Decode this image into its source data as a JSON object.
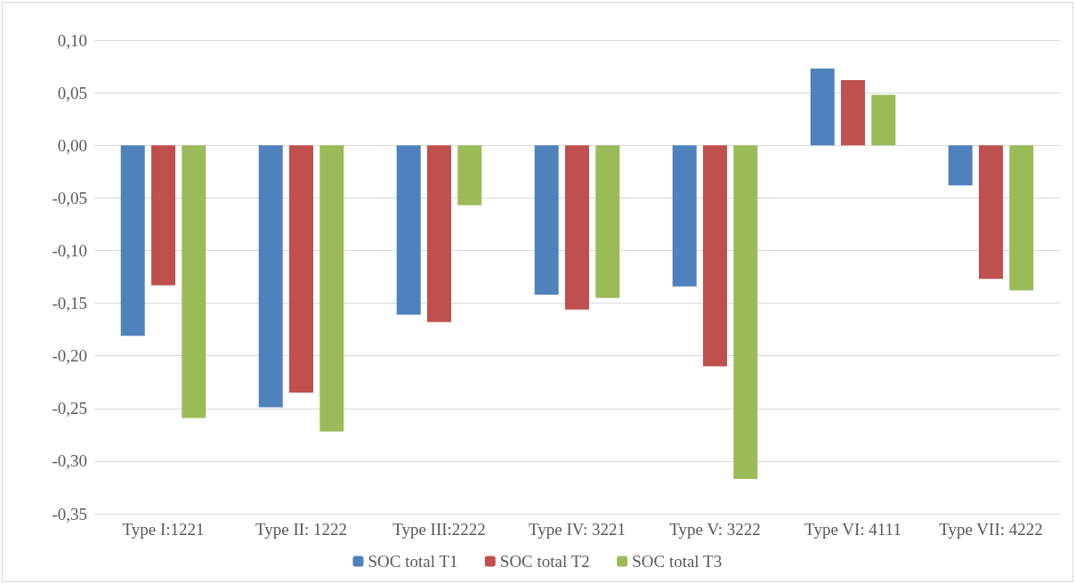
{
  "chart_data": {
    "type": "bar",
    "categories": [
      "Type I:1221",
      "Type II: 1222",
      "Type III:2222",
      "Type IV: 3221",
      "Type V: 3222",
      "Type VI: 4111",
      "Type VII: 4222"
    ],
    "series": [
      {
        "name": "SOC total T1",
        "color": "#4f81bd",
        "values": [
          -0.181,
          -0.249,
          -0.161,
          -0.142,
          -0.134,
          0.073,
          -0.038
        ]
      },
      {
        "name": "SOC total T2",
        "color": "#c0504d",
        "values": [
          -0.133,
          -0.235,
          -0.168,
          -0.156,
          -0.21,
          0.062,
          -0.127
        ]
      },
      {
        "name": "SOC total T3",
        "color": "#9bbb59",
        "values": [
          -0.259,
          -0.272,
          -0.057,
          -0.145,
          -0.317,
          0.048,
          -0.138
        ]
      }
    ],
    "ylim": [
      -0.35,
      0.1
    ],
    "yticks": [
      {
        "value": -0.35,
        "label": "-0,35"
      },
      {
        "value": -0.3,
        "label": "-0,30"
      },
      {
        "value": -0.25,
        "label": "-0,25"
      },
      {
        "value": -0.2,
        "label": "-0,20"
      },
      {
        "value": -0.15,
        "label": "-0,15"
      },
      {
        "value": -0.1,
        "label": "-0,10"
      },
      {
        "value": -0.05,
        "label": "-0,05"
      },
      {
        "value": 0,
        "label": "0,00"
      },
      {
        "value": 0.05,
        "label": "0,05"
      },
      {
        "value": 0.1,
        "label": "0,10"
      }
    ],
    "grid": "y",
    "legend": "bottom"
  }
}
